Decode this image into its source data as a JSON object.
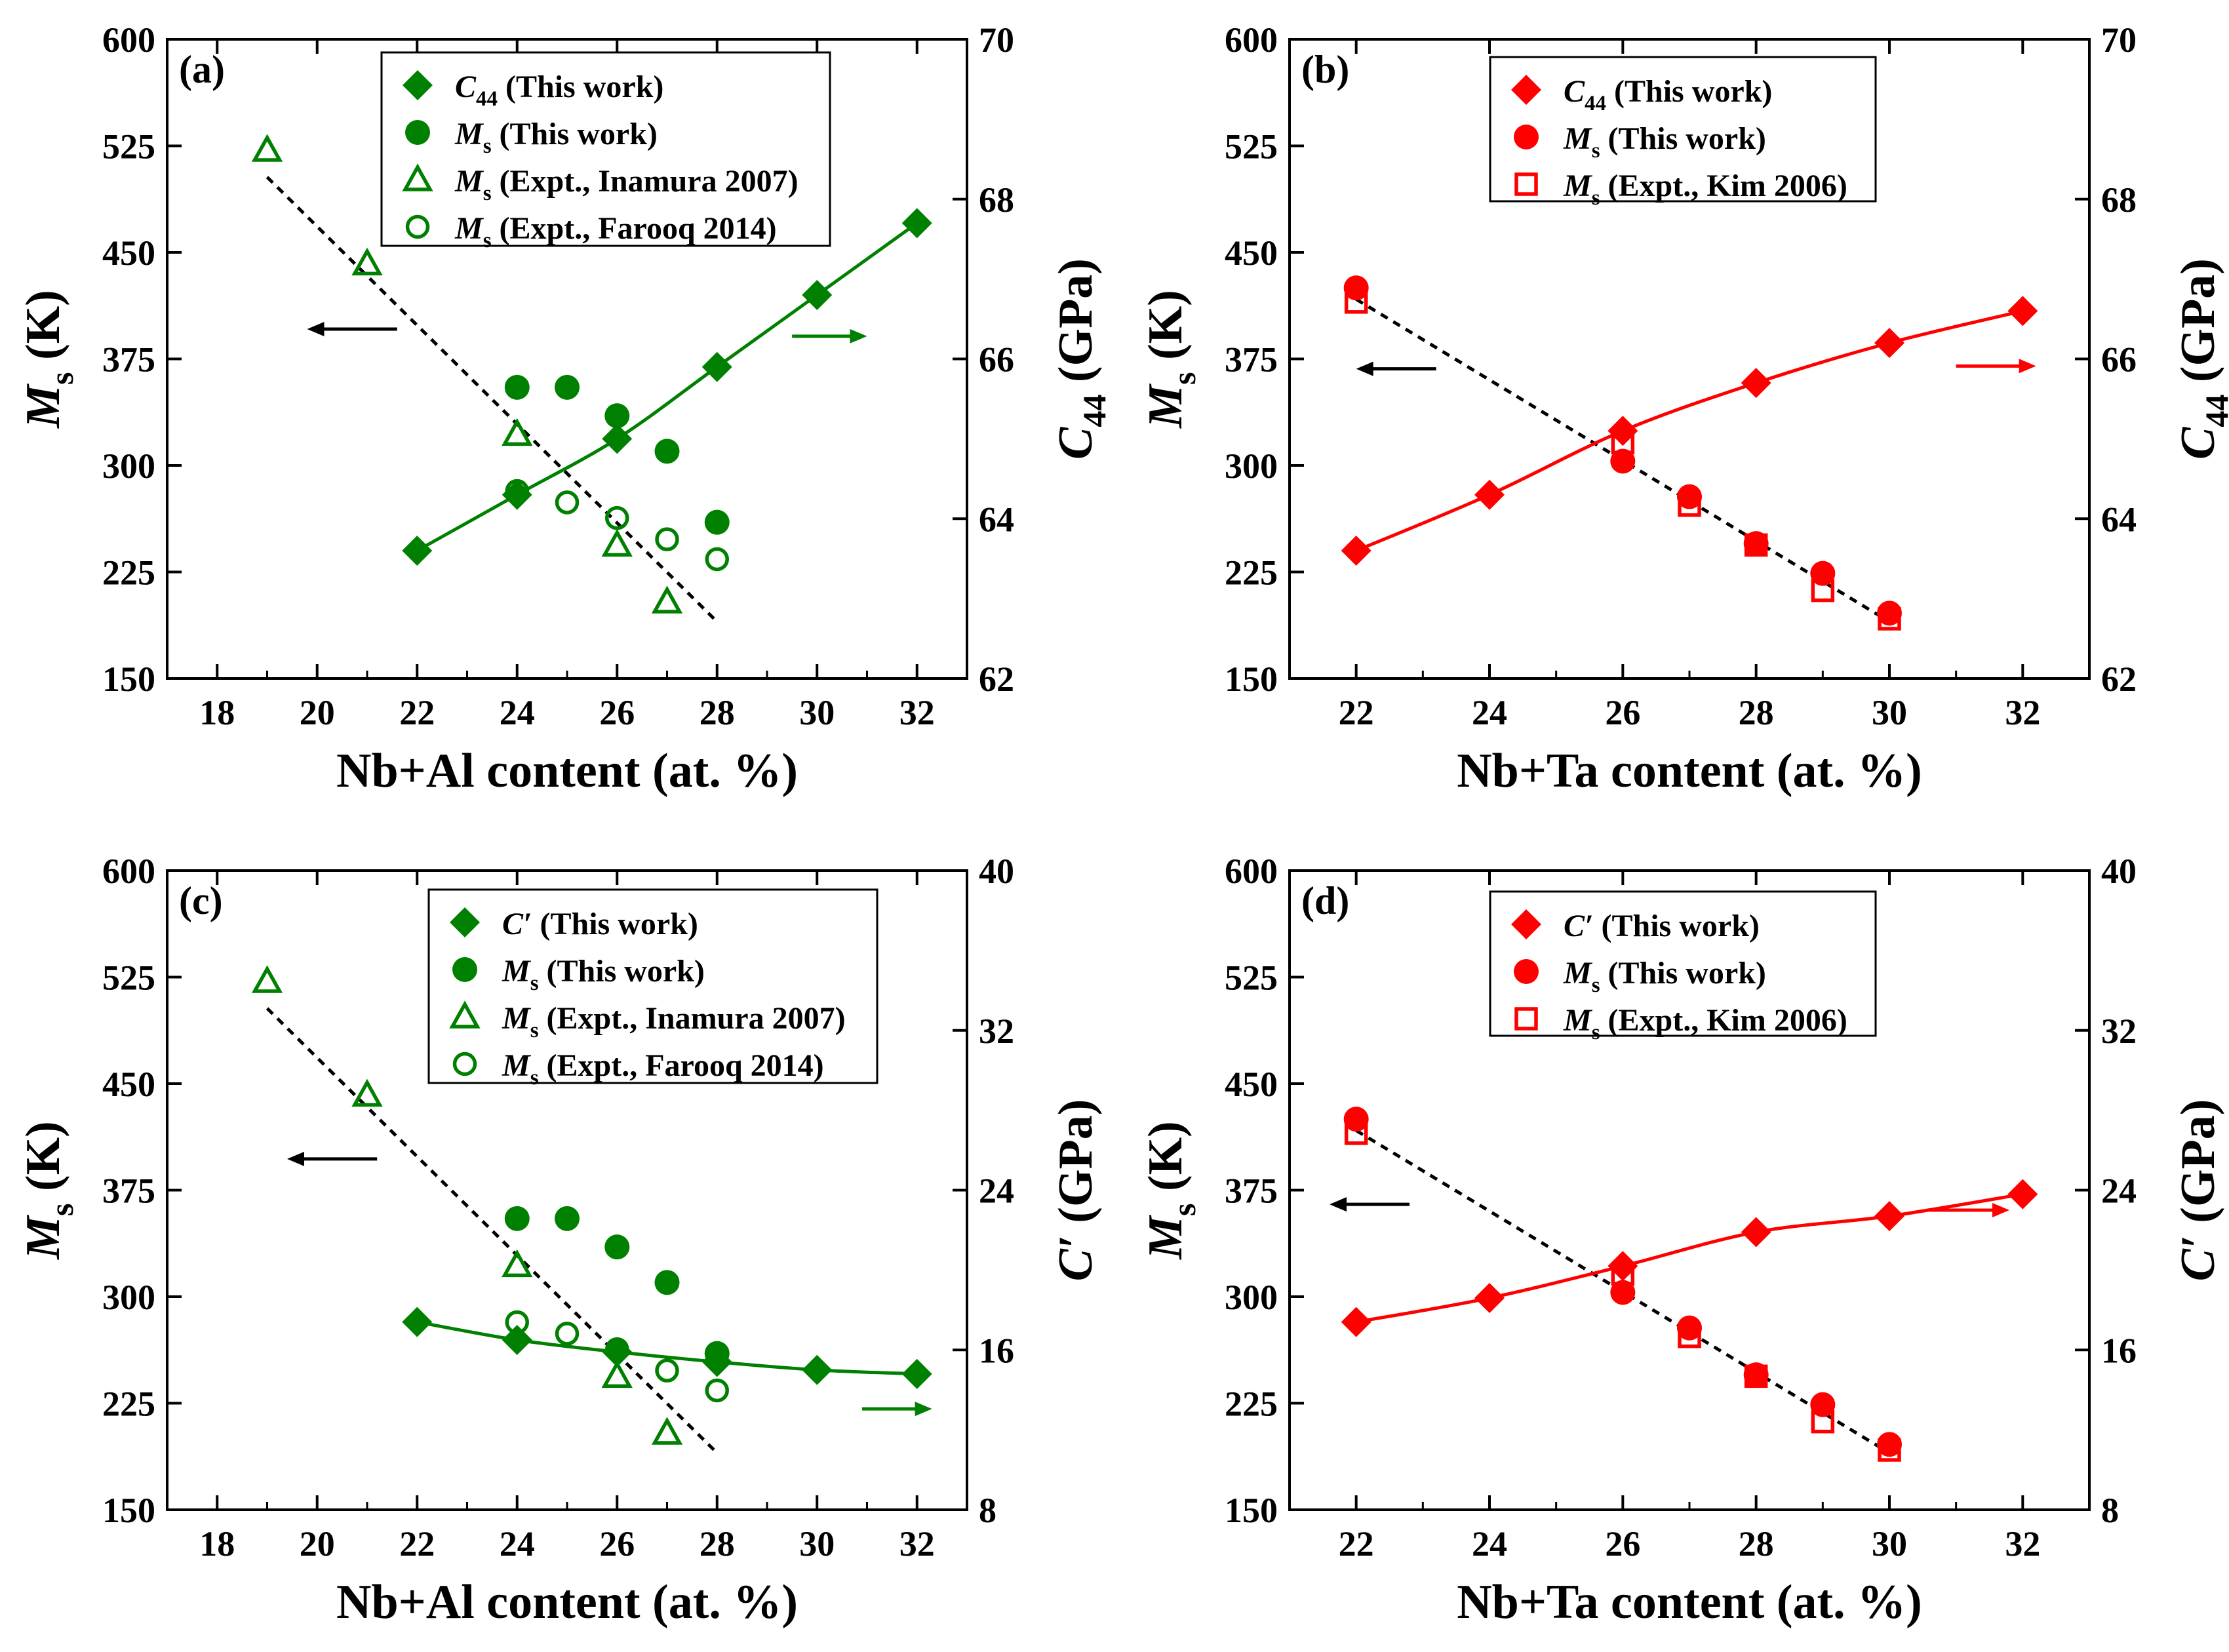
{
  "chart_data": [
    {
      "type": "scatter",
      "panel_label": "(a)",
      "xlabel": "Nb+Al content (at. %)",
      "ylabel_left": {
        "main": "M",
        "sub": "s",
        "unit": " (K)"
      },
      "ylabel_right": {
        "main": "C",
        "sub": "44",
        "unit": " (GPa)"
      },
      "xlim": [
        17,
        33
      ],
      "xticks": [
        18,
        20,
        22,
        24,
        26,
        28,
        30,
        32
      ],
      "ylim_left": [
        150,
        600
      ],
      "yticks_left": [
        150,
        225,
        300,
        375,
        450,
        525,
        600
      ],
      "ylim_right": [
        62,
        70
      ],
      "yticks_right": [
        62,
        64,
        66,
        68,
        70
      ],
      "color": "#008000",
      "legend_position": "top-center",
      "series": [
        {
          "name": "This work",
          "label_main": "C",
          "label_sub": "44",
          "label_rest": " (This work)",
          "marker": "filled-diamond",
          "axis": "right",
          "fit": "smooth",
          "x": [
            22,
            24,
            26,
            28,
            30,
            32
          ],
          "y": [
            63.6,
            64.3,
            65.0,
            65.9,
            66.8,
            67.7
          ]
        },
        {
          "name": "This work",
          "label_main": "M",
          "label_sub": "s",
          "label_rest": " (This work)",
          "marker": "filled-circle",
          "axis": "left",
          "x": [
            24,
            25,
            26,
            27,
            28
          ],
          "y": [
            355,
            355,
            335,
            310,
            260
          ]
        },
        {
          "name": "Expt., Inamura 2007",
          "label_main": "M",
          "label_sub": "s",
          "label_rest": " (Expt., Inamura 2007)",
          "marker": "open-triangle",
          "axis": "left",
          "x": [
            19,
            21,
            24,
            26,
            27
          ],
          "y": [
            522,
            442,
            322,
            244,
            204
          ]
        },
        {
          "name": "Expt., Farooq 2014",
          "label_main": "M",
          "label_sub": "s",
          "label_rest": " (Expt., Farooq 2014)",
          "marker": "open-circle",
          "axis": "left",
          "x": [
            24,
            25,
            26,
            27,
            28
          ],
          "y": [
            282,
            274,
            263,
            248,
            234
          ]
        }
      ],
      "trend_line": {
        "axis": "left",
        "style": "dashed",
        "x": [
          19,
          28
        ],
        "y": [
          503,
          190
        ]
      },
      "arrows": [
        {
          "direction": "left",
          "x": [
            21.6,
            19.8
          ],
          "y": 396,
          "color": "#000000"
        },
        {
          "direction": "right",
          "x": [
            29.5,
            31.0
          ],
          "y": 391,
          "color": "#008000"
        }
      ]
    },
    {
      "type": "scatter",
      "panel_label": "(b)",
      "xlabel": "Nb+Ta content (at. %)",
      "ylabel_left": {
        "main": "M",
        "sub": "s",
        "unit": " (K)"
      },
      "ylabel_right": {
        "main": "C",
        "sub": "44",
        "unit": " (GPa)"
      },
      "xlim": [
        21,
        33
      ],
      "xticks": [
        22,
        24,
        26,
        28,
        30,
        32
      ],
      "ylim_left": [
        150,
        600
      ],
      "yticks_left": [
        150,
        225,
        300,
        375,
        450,
        525,
        600
      ],
      "ylim_right": [
        62,
        70
      ],
      "yticks_right": [
        62,
        64,
        66,
        68,
        70
      ],
      "color": "#ff0000",
      "legend_position": "top-center",
      "series": [
        {
          "name": "This work",
          "label_main": "C",
          "label_sub": "44",
          "label_rest": " (This work)",
          "marker": "filled-diamond",
          "axis": "right",
          "fit": "smooth",
          "x": [
            22,
            24,
            26,
            28,
            30,
            32
          ],
          "y": [
            63.6,
            64.3,
            65.1,
            65.7,
            66.2,
            66.6
          ]
        },
        {
          "name": "This work",
          "label_main": "M",
          "label_sub": "s",
          "label_rest": " (This work)",
          "marker": "filled-circle",
          "axis": "left",
          "x": [
            22,
            26,
            27,
            28,
            29,
            30
          ],
          "y": [
            425,
            303,
            278,
            245,
            224,
            196
          ]
        },
        {
          "name": "Expt., Kim 2006",
          "label_main": "M",
          "label_sub": "s",
          "label_rest": " (Expt., Kim 2006)",
          "marker": "open-square",
          "axis": "left",
          "x": [
            22,
            26,
            27,
            28,
            29,
            30
          ],
          "y": [
            415,
            316,
            272,
            244,
            212,
            192
          ]
        }
      ],
      "trend_line": {
        "axis": "left",
        "style": "dashed",
        "x": [
          22,
          30
        ],
        "y": [
          417,
          190
        ]
      },
      "arrows": [
        {
          "direction": "left",
          "x": [
            23.2,
            22.0
          ],
          "y": 368,
          "color": "#000000"
        },
        {
          "direction": "right",
          "x": [
            31.0,
            32.2
          ],
          "y": 370,
          "color": "#ff0000"
        }
      ]
    },
    {
      "type": "scatter",
      "panel_label": "(c)",
      "xlabel": "Nb+Al content (at. %)",
      "ylabel_left": {
        "main": "M",
        "sub": "s",
        "unit": " (K)"
      },
      "ylabel_right": {
        "main": "C′",
        "sub": "",
        "unit": " (GPa)"
      },
      "xlim": [
        17,
        33
      ],
      "xticks": [
        18,
        20,
        22,
        24,
        26,
        28,
        30,
        32
      ],
      "ylim_left": [
        150,
        600
      ],
      "yticks_left": [
        150,
        225,
        300,
        375,
        450,
        525,
        600
      ],
      "ylim_right": [
        8,
        40
      ],
      "yticks_right": [
        8,
        16,
        24,
        32,
        40
      ],
      "color": "#008000",
      "legend_position": "top-center",
      "series": [
        {
          "name": "This work",
          "label_main": "C′",
          "label_sub": "",
          "label_rest": " (This work)",
          "marker": "filled-diamond",
          "axis": "right",
          "fit": "smooth",
          "x": [
            22,
            24,
            26,
            28,
            30,
            32
          ],
          "y": [
            17.4,
            16.5,
            15.9,
            15.4,
            15.0,
            14.8
          ]
        },
        {
          "name": "This work",
          "label_main": "M",
          "label_sub": "s",
          "label_rest": " (This work)",
          "marker": "filled-circle",
          "axis": "left",
          "x": [
            24,
            25,
            26,
            27,
            28
          ],
          "y": [
            355,
            355,
            335,
            310,
            260
          ]
        },
        {
          "name": "Expt., Inamura 2007",
          "label_main": "M",
          "label_sub": "s",
          "label_rest": " (Expt., Inamura 2007)",
          "marker": "open-triangle",
          "axis": "left",
          "x": [
            19,
            21,
            24,
            26,
            27
          ],
          "y": [
            522,
            442,
            322,
            244,
            204
          ]
        },
        {
          "name": "Expt., Farooq 2014",
          "label_main": "M",
          "label_sub": "s",
          "label_rest": " (Expt., Farooq 2014)",
          "marker": "open-circle",
          "axis": "left",
          "x": [
            24,
            25,
            26,
            27,
            28
          ],
          "y": [
            282,
            274,
            263,
            248,
            234
          ]
        }
      ],
      "trend_line": {
        "axis": "left",
        "style": "dashed",
        "x": [
          19,
          28
        ],
        "y": [
          503,
          190
        ]
      },
      "arrows": [
        {
          "direction": "left",
          "x": [
            21.2,
            19.4
          ],
          "y": 397,
          "color": "#000000"
        },
        {
          "direction": "right",
          "x": [
            30.9,
            32.3
          ],
          "y": 221,
          "color": "#008000"
        }
      ]
    },
    {
      "type": "scatter",
      "panel_label": "(d)",
      "xlabel": "Nb+Ta content (at. %)",
      "ylabel_left": {
        "main": "M",
        "sub": "s",
        "unit": " (K)"
      },
      "ylabel_right": {
        "main": "C′",
        "sub": "",
        "unit": " (GPa)"
      },
      "xlim": [
        21,
        33
      ],
      "xticks": [
        22,
        24,
        26,
        28,
        30,
        32
      ],
      "ylim_left": [
        150,
        600
      ],
      "yticks_left": [
        150,
        225,
        300,
        375,
        450,
        525,
        600
      ],
      "ylim_right": [
        8,
        40
      ],
      "yticks_right": [
        8,
        16,
        24,
        32,
        40
      ],
      "color": "#ff0000",
      "legend_position": "top-center",
      "series": [
        {
          "name": "This work",
          "label_main": "C′",
          "label_sub": "",
          "label_rest": " (This work)",
          "marker": "filled-diamond",
          "axis": "right",
          "fit": "smooth",
          "x": [
            22,
            24,
            26,
            28,
            30,
            32
          ],
          "y": [
            17.4,
            18.6,
            20.2,
            21.9,
            22.7,
            23.8
          ]
        },
        {
          "name": "This work",
          "label_main": "M",
          "label_sub": "s",
          "label_rest": " (This work)",
          "marker": "filled-circle",
          "axis": "left",
          "x": [
            22,
            26,
            27,
            28,
            29,
            30
          ],
          "y": [
            425,
            303,
            278,
            245,
            224,
            196
          ]
        },
        {
          "name": "Expt., Kim 2006",
          "label_main": "M",
          "label_sub": "s",
          "label_rest": " (Expt., Kim 2006)",
          "marker": "open-square",
          "axis": "left",
          "x": [
            22,
            26,
            27,
            28,
            29,
            30
          ],
          "y": [
            415,
            316,
            272,
            244,
            212,
            192
          ]
        }
      ],
      "trend_line": {
        "axis": "left",
        "style": "dashed",
        "x": [
          22,
          30
        ],
        "y": [
          417,
          190
        ]
      },
      "arrows": [
        {
          "direction": "left",
          "x": [
            22.8,
            21.6
          ],
          "y": 365,
          "color": "#000000"
        },
        {
          "direction": "right",
          "x": [
            30.6,
            31.8
          ],
          "y": 23.0,
          "color": "#ff0000",
          "axis": "right"
        }
      ]
    }
  ]
}
